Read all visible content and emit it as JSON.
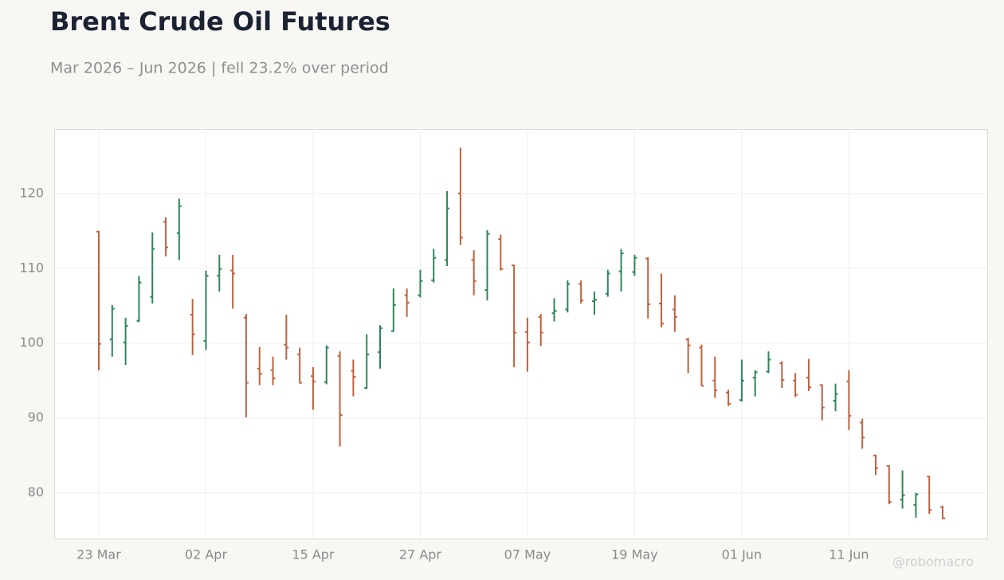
{
  "chart_data": {
    "type": "ohlc",
    "title": "Brent Crude Oil Futures",
    "subtitle": "Mar 2026 – Jun 2026 | fell 23.2% over period",
    "watermark": "@robomacro",
    "categories": [
      "23 Mar",
      "24 Mar",
      "25 Mar",
      "26 Mar",
      "27 Mar",
      "30 Mar",
      "31 Mar",
      "01 Apr",
      "02 Apr",
      "06 Apr",
      "07 Apr",
      "08 Apr",
      "09 Apr",
      "10 Apr",
      "13 Apr",
      "14 Apr",
      "15 Apr",
      "16 Apr",
      "17 Apr",
      "20 Apr",
      "21 Apr",
      "22 Apr",
      "23 Apr",
      "24 Apr",
      "27 Apr",
      "28 Apr",
      "29 Apr",
      "30 Apr",
      "01 May",
      "04 May",
      "05 May",
      "06 May",
      "07 May",
      "08 May",
      "11 May",
      "12 May",
      "13 May",
      "14 May",
      "15 May",
      "18 May",
      "19 May",
      "20 May",
      "21 May",
      "22 May",
      "26 May",
      "27 May",
      "28 May",
      "29 May",
      "01 Jun",
      "02 Jun",
      "03 Jun",
      "04 Jun",
      "05 Jun",
      "08 Jun",
      "09 Jun",
      "10 Jun",
      "11 Jun",
      "12 Jun",
      "15 Jun",
      "16 Jun",
      "17 Jun",
      "18 Jun",
      "19 Jun",
      "22 Jun"
    ],
    "open": [
      114.9,
      100.5,
      100.1,
      103.0,
      106.2,
      116.2,
      114.7,
      103.8,
      100.3,
      109.0,
      109.7,
      103.4,
      96.6,
      96.4,
      99.8,
      98.5,
      95.6,
      94.8,
      98.3,
      96.3,
      94.0,
      98.8,
      101.6,
      106.4,
      106.4,
      108.4,
      111.1,
      120.0,
      111.1,
      107.1,
      113.9,
      110.4,
      101.5,
      103.5,
      104.0,
      104.5,
      107.9,
      105.6,
      106.6,
      109.6,
      109.5,
      111.3,
      105.3,
      104.5,
      100.5,
      99.4,
      95.0,
      93.4,
      92.4,
      95.4,
      96.2,
      97.3,
      95.0,
      95.4,
      94.4,
      92.3,
      94.9,
      89.4,
      85.0,
      83.6,
      79.1,
      78.4,
      82.2,
      78.1
    ],
    "high": [
      115.0,
      105.1,
      103.4,
      109.0,
      114.8,
      116.8,
      119.3,
      105.9,
      109.7,
      111.8,
      111.8,
      103.9,
      99.5,
      98.2,
      103.8,
      99.4,
      96.8,
      99.7,
      98.9,
      97.8,
      101.2,
      102.4,
      107.3,
      107.3,
      109.8,
      112.6,
      120.3,
      126.1,
      112.4,
      115.1,
      114.5,
      110.5,
      103.4,
      103.9,
      106.0,
      108.4,
      108.4,
      106.9,
      109.8,
      112.6,
      111.8,
      111.5,
      109.3,
      106.4,
      100.7,
      99.8,
      98.2,
      93.8,
      97.8,
      96.4,
      98.9,
      97.6,
      96.0,
      97.9,
      94.5,
      94.6,
      96.4,
      89.9,
      85.1,
      83.7,
      83.0,
      80.0,
      82.3,
      78.3
    ],
    "low": [
      96.4,
      98.2,
      97.1,
      102.8,
      105.3,
      111.6,
      111.1,
      98.4,
      99.1,
      106.9,
      104.6,
      90.1,
      94.4,
      94.4,
      97.8,
      94.6,
      91.1,
      94.5,
      86.2,
      92.9,
      93.9,
      96.6,
      101.5,
      103.5,
      106.1,
      108.1,
      110.3,
      113.1,
      106.4,
      105.7,
      109.7,
      96.8,
      96.2,
      99.6,
      102.9,
      104.1,
      105.3,
      103.8,
      106.2,
      106.9,
      109.0,
      103.3,
      102.1,
      101.5,
      96.0,
      94.3,
      92.7,
      91.6,
      92.2,
      92.9,
      96.0,
      94.0,
      92.8,
      93.6,
      89.7,
      90.9,
      88.4,
      85.9,
      82.4,
      78.5,
      77.9,
      76.7,
      77.2,
      76.5
    ],
    "close": [
      99.9,
      104.6,
      102.3,
      108.1,
      112.6,
      112.8,
      118.3,
      101.2,
      109.0,
      109.9,
      109.3,
      94.7,
      95.9,
      95.3,
      99.4,
      94.7,
      94.9,
      99.4,
      90.4,
      95.5,
      98.5,
      102.0,
      105.1,
      105.4,
      108.3,
      111.4,
      118.0,
      114.1,
      108.3,
      114.6,
      109.9,
      101.4,
      100.1,
      101.4,
      104.3,
      107.9,
      105.7,
      105.8,
      109.3,
      112.0,
      111.4,
      105.2,
      102.6,
      103.5,
      99.7,
      94.3,
      93.7,
      91.9,
      95.0,
      96.1,
      97.8,
      95.1,
      93.1,
      94.1,
      91.4,
      93.2,
      90.3,
      87.4,
      83.3,
      78.8,
      79.7,
      79.8,
      77.7,
      76.6
    ],
    "up_color": "#2e8659",
    "down_color": "#c0623f",
    "ylim": [
      73.9,
      128.6
    ],
    "yticks": [
      80,
      90,
      100,
      110,
      120
    ],
    "xticks": [
      "23 Mar",
      "02 Apr",
      "15 Apr",
      "27 Apr",
      "07 May",
      "19 May",
      "01 Jun",
      "11 Jun"
    ],
    "grid": true
  }
}
